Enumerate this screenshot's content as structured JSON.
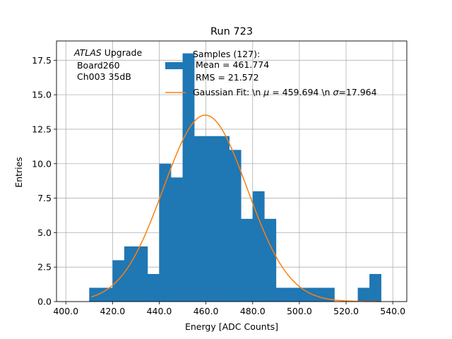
{
  "chart_data": {
    "type": "histogram",
    "title": "Run 723",
    "xlabel": "Energy [ADC Counts]",
    "ylabel": "Entries",
    "xlim": [
      396,
      546
    ],
    "ylim": [
      0,
      18.9
    ],
    "grid": true,
    "xticks": [
      400.0,
      420.0,
      440.0,
      460.0,
      480.0,
      500.0,
      520.0,
      540.0
    ],
    "xtick_labels": [
      "400.0",
      "420.0",
      "440.0",
      "460.0",
      "480.0",
      "500.0",
      "520.0",
      "540.0"
    ],
    "yticks": [
      0.0,
      2.5,
      5.0,
      7.5,
      10.0,
      12.5,
      15.0,
      17.5
    ],
    "ytick_labels": [
      "0.0",
      "2.5",
      "5.0",
      "7.5",
      "10.0",
      "12.5",
      "15.0",
      "17.5"
    ],
    "bin_width": 5,
    "bins": [
      {
        "x0": 410,
        "count": 1
      },
      {
        "x0": 415,
        "count": 1
      },
      {
        "x0": 420,
        "count": 3
      },
      {
        "x0": 425,
        "count": 4
      },
      {
        "x0": 430,
        "count": 4
      },
      {
        "x0": 435,
        "count": 2
      },
      {
        "x0": 440,
        "count": 10
      },
      {
        "x0": 445,
        "count": 9
      },
      {
        "x0": 450,
        "count": 18
      },
      {
        "x0": 455,
        "count": 12
      },
      {
        "x0": 460,
        "count": 12
      },
      {
        "x0": 465,
        "count": 12
      },
      {
        "x0": 470,
        "count": 11
      },
      {
        "x0": 475,
        "count": 6
      },
      {
        "x0": 480,
        "count": 8
      },
      {
        "x0": 485,
        "count": 6
      },
      {
        "x0": 490,
        "count": 1
      },
      {
        "x0": 495,
        "count": 1
      },
      {
        "x0": 500,
        "count": 1
      },
      {
        "x0": 505,
        "count": 1
      },
      {
        "x0": 510,
        "count": 1
      },
      {
        "x0": 515,
        "count": 0
      },
      {
        "x0": 520,
        "count": 0
      },
      {
        "x0": 525,
        "count": 1
      },
      {
        "x0": 530,
        "count": 2
      }
    ],
    "fit": {
      "type": "gaussian",
      "mu": 459.694,
      "sigma": 17.964,
      "amplitude": 13.52,
      "x_range": [
        411,
        535
      ]
    },
    "colors": {
      "hist": "#1f77b4",
      "fit": "#ff7f0e",
      "grid": "#b0b0b0"
    },
    "annotation": {
      "italic": "ATLAS",
      "line1_rest": " Upgrade",
      "line2": " Board260",
      "line3": " Ch003 35dB"
    },
    "legend": {
      "placement": "top-center",
      "hist_label": [
        "Samples (127):",
        " Mean = 461.774",
        " RMS = 21.572"
      ],
      "fit_label_parts": [
        "Gaussian Fit: \\n ",
        "μ",
        " = 459.694 \\n ",
        "σ",
        "=17.964"
      ]
    }
  }
}
